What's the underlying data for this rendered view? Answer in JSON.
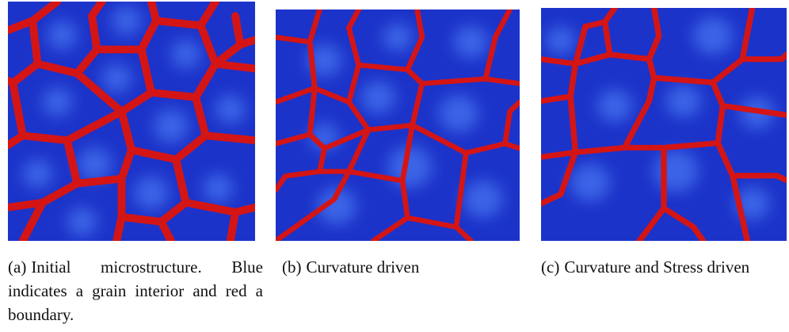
{
  "subfigures": [
    {
      "label": "(a)",
      "caption": "Initial microstructure. Blue indicates a grain interior and red a boundary."
    },
    {
      "label": "(b)",
      "caption": "Curvature driven"
    },
    {
      "label": "(c)",
      "caption": "Curvature and Stress driven"
    }
  ]
}
